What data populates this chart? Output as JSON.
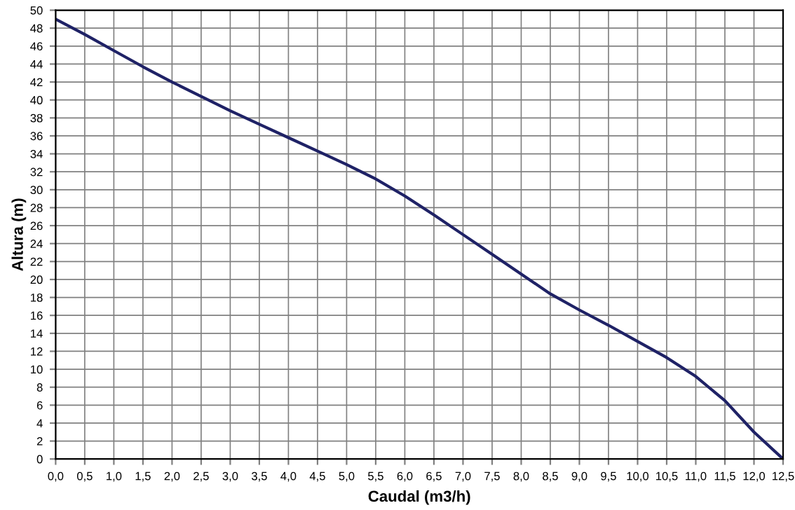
{
  "chart_data": {
    "type": "line",
    "xlabel": "Caudal (m3/h)",
    "ylabel": "Altura (m)",
    "x": [
      0,
      0.5,
      1.0,
      1.5,
      2.0,
      2.5,
      3.0,
      3.5,
      4.0,
      4.5,
      5.0,
      5.5,
      6.0,
      6.5,
      7.0,
      7.5,
      8.0,
      8.5,
      9.0,
      9.5,
      10.0,
      10.5,
      11.0,
      11.5,
      12.0,
      12.5
    ],
    "series": [
      {
        "color": "#1f2266",
        "values": [
          49,
          47.3,
          45.5,
          43.7,
          42,
          40.4,
          38.8,
          37.3,
          35.8,
          34.3,
          32.8,
          31.2,
          29.3,
          27.2,
          25,
          22.8,
          20.6,
          18.4,
          16.6,
          14.9,
          13.1,
          11.3,
          9.2,
          6.5,
          3.0,
          0
        ]
      }
    ],
    "xlim": [
      0,
      12.5
    ],
    "xticks": [
      {
        "value": 0,
        "label": "0,0"
      },
      {
        "value": 0.5,
        "label": "0,5"
      },
      {
        "value": 1,
        "label": "1,0"
      },
      {
        "value": 1.5,
        "label": "1,5"
      },
      {
        "value": 2,
        "label": "2,0"
      },
      {
        "value": 2.5,
        "label": "2,5"
      },
      {
        "value": 3,
        "label": "3,0"
      },
      {
        "value": 3.5,
        "label": "3,5"
      },
      {
        "value": 4,
        "label": "4,0"
      },
      {
        "value": 4.5,
        "label": "4,5"
      },
      {
        "value": 5,
        "label": "5,0"
      },
      {
        "value": 5.5,
        "label": "5,5"
      },
      {
        "value": 6,
        "label": "6,0"
      },
      {
        "value": 6.5,
        "label": "6,5"
      },
      {
        "value": 7,
        "label": "7,0"
      },
      {
        "value": 7.5,
        "label": "7,5"
      },
      {
        "value": 8,
        "label": "8,0"
      },
      {
        "value": 8.5,
        "label": "8,5"
      },
      {
        "value": 9,
        "label": "9,0"
      },
      {
        "value": 9.5,
        "label": "9,5"
      },
      {
        "value": 10,
        "label": "10,0"
      },
      {
        "value": 10.5,
        "label": "10,5"
      },
      {
        "value": 11,
        "label": "11,0"
      },
      {
        "value": 11.5,
        "label": "11,5"
      },
      {
        "value": 12,
        "label": "12,0"
      },
      {
        "value": 12.5,
        "label": "12,5"
      }
    ],
    "ylim": [
      0,
      50
    ],
    "yticks": [
      0,
      2,
      4,
      6,
      8,
      10,
      12,
      14,
      16,
      18,
      20,
      22,
      24,
      26,
      28,
      30,
      32,
      34,
      36,
      38,
      40,
      42,
      44,
      46,
      48,
      50
    ],
    "grid": true,
    "marker": "none",
    "line_style": "solid"
  }
}
